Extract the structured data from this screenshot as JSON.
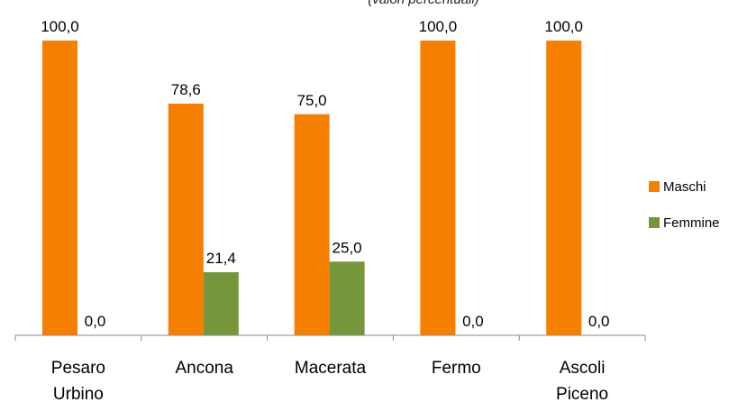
{
  "chart_data": {
    "type": "bar",
    "subtitle": "(valori percentuali)",
    "categories": [
      [
        "Pesaro",
        "Urbino"
      ],
      [
        "Ancona"
      ],
      [
        "Macerata"
      ],
      [
        "Fermo"
      ],
      [
        "Ascoli",
        "Piceno"
      ]
    ],
    "series": [
      {
        "name": "Maschi",
        "color": "#F47F00",
        "values": [
          100.0,
          78.6,
          75.0,
          100.0,
          100.0
        ],
        "labels": [
          "100,0",
          "78,6",
          "75,0",
          "100,0",
          "100,0"
        ]
      },
      {
        "name": "Femmine",
        "color": "#76963C",
        "values": [
          0.0,
          21.4,
          25.0,
          0.0,
          0.0
        ],
        "labels": [
          "0,0",
          "21,4",
          "25,0",
          "0,0",
          "0,0"
        ]
      }
    ],
    "ylim": [
      0,
      100
    ],
    "grid": false,
    "legend_position": "right"
  }
}
